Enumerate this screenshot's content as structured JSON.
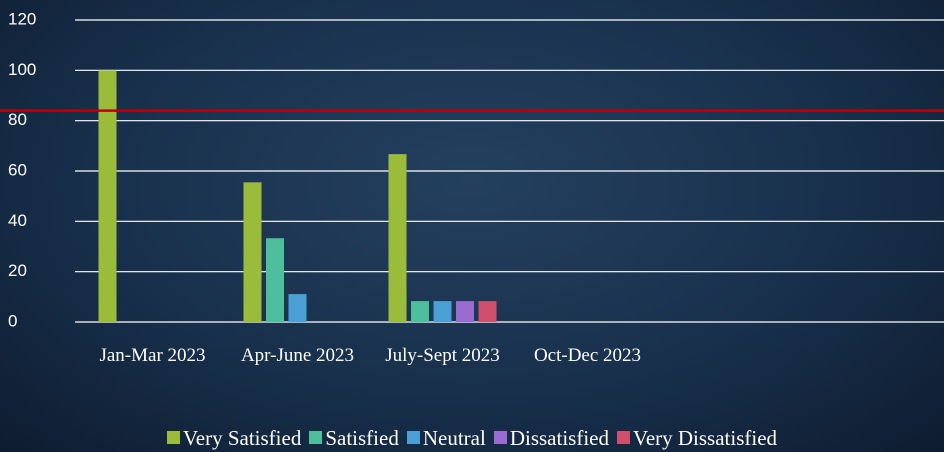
{
  "chart_data": {
    "type": "bar",
    "categories": [
      "Jan-Mar 2023",
      "Apr-June 2023",
      "July-Sept 2023",
      "Oct-Dec 2023"
    ],
    "series": [
      {
        "name": "Very Satisfied",
        "color": "#9bbb3a",
        "values": [
          100,
          55.5,
          66.7,
          0
        ]
      },
      {
        "name": "Satisfied",
        "color": "#4dbf9c",
        "values": [
          0,
          33.3,
          8.3,
          0
        ]
      },
      {
        "name": "Neutral",
        "color": "#4a9fd4",
        "values": [
          0,
          11.1,
          8.3,
          0
        ]
      },
      {
        "name": "Dissatisfied",
        "color": "#9a6bd0",
        "values": [
          0,
          0,
          8.3,
          0
        ]
      },
      {
        "name": "Very Dissatisfied",
        "color": "#cf4f6c",
        "values": [
          0,
          0,
          8.3,
          0
        ]
      }
    ],
    "reference_line": {
      "value": 84,
      "color": "#c00000"
    },
    "ylim": [
      0,
      120
    ],
    "yticks": [
      0,
      20,
      40,
      60,
      80,
      100,
      120
    ],
    "grid": true,
    "legend": "bottom"
  }
}
